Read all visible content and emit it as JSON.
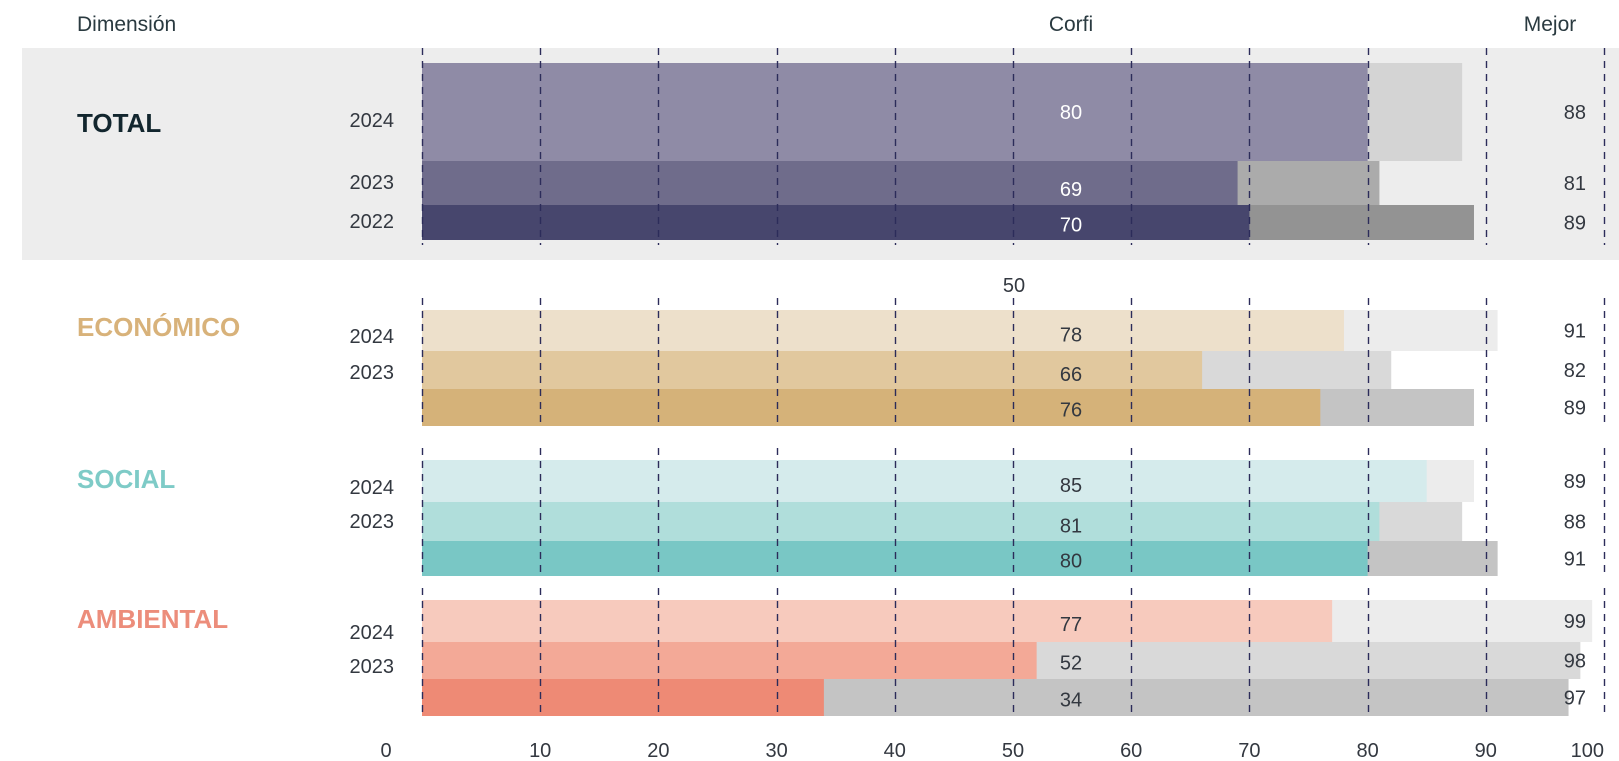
{
  "headers": {
    "dimension": "Dimensión",
    "company": "Corfi",
    "best": "Mejor"
  },
  "stray_label": "50",
  "chart_data": {
    "type": "bar",
    "orientation": "horizontal",
    "xlim": [
      0,
      100
    ],
    "x_ticks": [
      "0",
      "10",
      "20",
      "30",
      "40",
      "50",
      "60",
      "70",
      "80",
      "90",
      "100"
    ],
    "grid": "dashed vertical lines at every 10",
    "groups": [
      {
        "name": "TOTAL",
        "label_color": "#12262e",
        "band_color": "#ededed",
        "rows": [
          {
            "year": "2024",
            "value": 80,
            "best": 88,
            "color": "#8f8ba6",
            "best_color": "#d4d4d4",
            "label_color": "#ffffff"
          },
          {
            "year": "2023",
            "value": 69,
            "best": 81,
            "color": "#6f6c8b",
            "best_color": "#ababab",
            "label_color": "#ffffff"
          },
          {
            "year": "2022",
            "value": 70,
            "best": 89,
            "color": "#47466d",
            "best_color": "#939393",
            "label_color": "#ffffff"
          }
        ]
      },
      {
        "name": "ECONÓMICO",
        "label_color": "#d8b27a",
        "rows": [
          {
            "year": "2024",
            "value": 78,
            "best": 91,
            "color": "#ede0cb",
            "best_color": "#ececec",
            "label_color": "#333840"
          },
          {
            "year": "2023",
            "value": 66,
            "best": 82,
            "color": "#e1c89e",
            "best_color": "#d9d9d9",
            "label_color": "#333840"
          },
          {
            "year": "",
            "value": 76,
            "best": 89,
            "color": "#d5b279",
            "best_color": "#c4c4c4",
            "label_color": "#333840"
          }
        ]
      },
      {
        "name": "SOCIAL",
        "label_color": "#7ecbc7",
        "rows": [
          {
            "year": "2024",
            "value": 85,
            "best": 89,
            "color": "#d5ebec",
            "best_color": "#ececec",
            "label_color": "#333840"
          },
          {
            "year": "2023",
            "value": 81,
            "best": 88,
            "color": "#b0dedb",
            "best_color": "#d9d9d9",
            "label_color": "#333840"
          },
          {
            "year": "",
            "value": 80,
            "best": 91,
            "color": "#79c7c5",
            "best_color": "#c4c4c4",
            "label_color": "#333840"
          }
        ]
      },
      {
        "name": "AMBIENTAL",
        "label_color": "#ec8d7b",
        "rows": [
          {
            "year": "2024",
            "value": 77,
            "best": 99,
            "color": "#f7cabd",
            "best_color": "#ececec",
            "label_color": "#333840"
          },
          {
            "year": "2023",
            "value": 52,
            "best": 98,
            "color": "#f3a997",
            "best_color": "#d9d9d9",
            "label_color": "#333840"
          },
          {
            "year": "",
            "value": 34,
            "best": 97,
            "color": "#ee8a75",
            "best_color": "#c4c4c4",
            "label_color": "#333840"
          }
        ]
      }
    ]
  }
}
